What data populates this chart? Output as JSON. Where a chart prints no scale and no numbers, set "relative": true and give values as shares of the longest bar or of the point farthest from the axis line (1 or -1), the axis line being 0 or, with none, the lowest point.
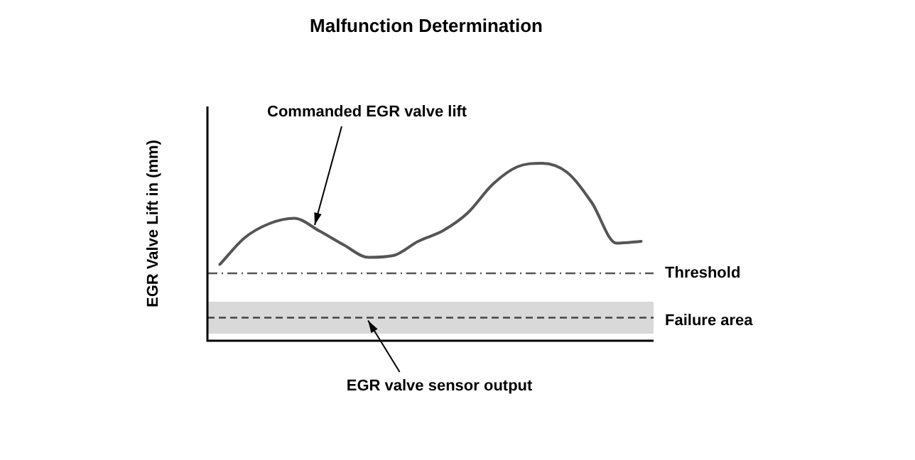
{
  "chart_data": {
    "type": "line",
    "title": "Malfunction Determination",
    "ylabel": "EGR Valve Lift in (mm)",
    "relative": true,
    "categories": [
      null,
      null,
      null,
      null,
      null,
      null,
      null,
      null,
      null,
      null,
      null,
      null,
      null,
      null,
      null,
      null,
      null,
      null
    ],
    "series": [
      {
        "name": "Commanded EGR valve lift",
        "color": "#555555",
        "values": [
          0.43,
          0.58,
          0.66,
          0.69,
          0.62,
          0.54,
          0.47,
          0.48,
          0.56,
          0.62,
          0.72,
          0.88,
          0.98,
          1.0,
          0.95,
          0.78,
          0.55,
          0.56
        ]
      }
    ],
    "ref_lines": [
      {
        "axis": "y",
        "value": 0.38,
        "label": "Threshold",
        "color": "#555555",
        "line_style": "dashdot"
      },
      {
        "axis": "y",
        "value": 0.13,
        "label": "EGR valve sensor output",
        "color": "#444444",
        "line_style": "dashed"
      }
    ],
    "bands": [
      {
        "axis": "y",
        "from": 0.04,
        "to": 0.22,
        "label": "Failure area",
        "color": "#d9d9d9"
      }
    ],
    "legend": false,
    "marker": "none",
    "line_style": "solid"
  }
}
